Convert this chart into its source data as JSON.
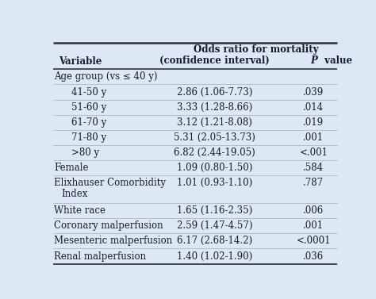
{
  "rows": [
    {
      "variable": "Age group (vs ≤ 40 y)",
      "or": "",
      "pval": "",
      "indent": 0,
      "shaded": true,
      "two_line": false
    },
    {
      "variable": "41-50 y",
      "or": "2.86 (1.06-7.73)",
      "pval": ".039",
      "indent": 1,
      "shaded": true,
      "two_line": false
    },
    {
      "variable": "51-60 y",
      "or": "3.33 (1.28-8.66)",
      "pval": ".014",
      "indent": 1,
      "shaded": true,
      "two_line": false
    },
    {
      "variable": "61-70 y",
      "or": "3.12 (1.21-8.08)",
      "pval": ".019",
      "indent": 1,
      "shaded": true,
      "two_line": false
    },
    {
      "variable": "71-80 y",
      "or": "5.31 (2.05-13.73)",
      "pval": ".001",
      "indent": 1,
      "shaded": true,
      "two_line": false
    },
    {
      "variable": ">80 y",
      "or": "6.82 (2.44-19.05)",
      "pval": "<.001",
      "indent": 1,
      "shaded": true,
      "two_line": false
    },
    {
      "variable": "Female",
      "or": "1.09 (0.80-1.50)",
      "pval": ".584",
      "indent": 0,
      "shaded": true,
      "two_line": false
    },
    {
      "variable": "Elixhauser Comorbidity\nIndex",
      "or": "1.01 (0.93-1.10)",
      "pval": ".787",
      "indent": 0,
      "shaded": true,
      "two_line": true
    },
    {
      "variable": "White race",
      "or": "1.65 (1.16-2.35)",
      "pval": ".006",
      "indent": 0,
      "shaded": true,
      "two_line": false
    },
    {
      "variable": "Coronary malperfusion",
      "or": "2.59 (1.47-4.57)",
      "pval": ".001",
      "indent": 0,
      "shaded": true,
      "two_line": false
    },
    {
      "variable": "Mesenteric malperfusion",
      "or": "6.17 (2.68-14.2)",
      "pval": "<.0001",
      "indent": 0,
      "shaded": true,
      "two_line": false
    },
    {
      "variable": "Renal malperfusion",
      "or": "1.40 (1.02-1.90)",
      "pval": ".036",
      "indent": 0,
      "shaded": true,
      "two_line": false
    }
  ],
  "bg_color": "#dce9f5",
  "separator_color": "#888888",
  "header_line_color": "#333333",
  "text_color": "#1a1a2e",
  "font_size": 8.5,
  "header_font_size": 8.5,
  "fig_width": 4.74,
  "fig_height": 3.77
}
